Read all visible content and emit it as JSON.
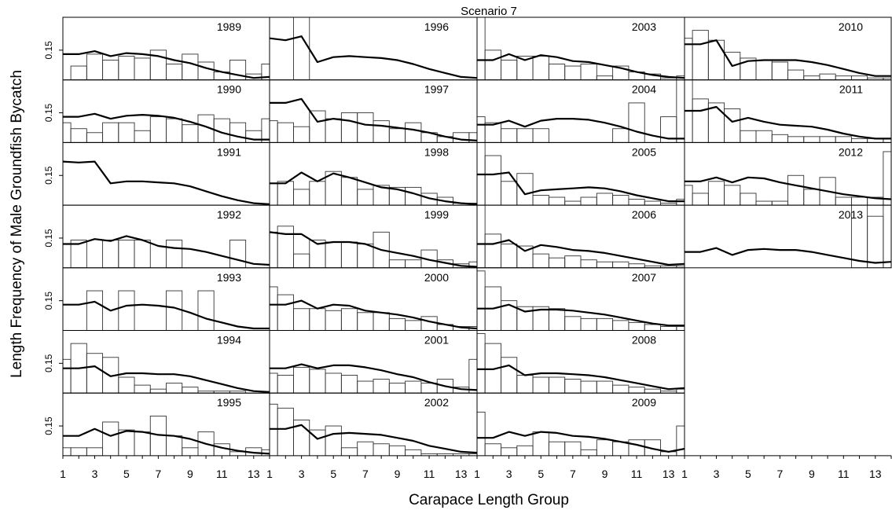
{
  "figure": {
    "title": "Scenario 7",
    "xlabel": "Carapace Length Group",
    "ylabel": "Length Frequency of Male Groundfish Bycatch",
    "x_ticks": [
      "1",
      "3",
      "5",
      "7",
      "9",
      "11",
      "13"
    ],
    "y_tick_label": "0.15"
  },
  "chart_data": {
    "type": "bar+line small multiples",
    "x": [
      1,
      2,
      3,
      4,
      5,
      6,
      7,
      8,
      9,
      10,
      11,
      12,
      13,
      14
    ],
    "xlim": [
      1,
      14
    ],
    "ylim": [
      0,
      0.3
    ],
    "bars": "observed length frequency",
    "line": "predicted length frequency",
    "panels": [
      {
        "year": "1989",
        "observed": [
          0,
          0.07,
          0.13,
          0.1,
          0.12,
          0.11,
          0.15,
          0.08,
          0.13,
          0.09,
          0.04,
          0.1,
          0.03,
          0.08
        ],
        "predicted": [
          0.13,
          0.13,
          0.145,
          0.12,
          0.135,
          0.13,
          0.12,
          0.1,
          0.085,
          0.06,
          0.04,
          0.025,
          0.01,
          0.015
        ]
      },
      {
        "year": "1990",
        "observed": [
          0.1,
          0.07,
          0.05,
          0.1,
          0.1,
          0.06,
          0.13,
          0.12,
          0.09,
          0.14,
          0.12,
          0.1,
          0.06,
          0.12
        ],
        "predicted": [
          0.13,
          0.13,
          0.145,
          0.12,
          0.135,
          0.14,
          0.135,
          0.125,
          0.105,
          0.08,
          0.05,
          0.03,
          0.015,
          0.015
        ]
      },
      {
        "year": "1991",
        "observed": [
          0,
          0,
          0,
          0,
          0,
          0,
          0,
          0,
          0,
          0,
          0,
          0,
          0,
          0
        ],
        "predicted": [
          0.22,
          0.215,
          0.22,
          0.11,
          0.12,
          0.12,
          0.115,
          0.11,
          0.095,
          0.07,
          0.045,
          0.025,
          0.01,
          0.005
        ]
      },
      {
        "year": "1992",
        "observed": [
          0,
          0.14,
          0,
          0.14,
          0.14,
          0.14,
          0,
          0.14,
          0,
          0,
          0,
          0.14,
          0,
          0
        ],
        "predicted": [
          0.12,
          0.12,
          0.145,
          0.135,
          0.16,
          0.14,
          0.11,
          0.1,
          0.095,
          0.08,
          0.06,
          0.04,
          0.02,
          0.015
        ]
      },
      {
        "year": "1993",
        "observed": [
          0,
          0,
          0.2,
          0,
          0.2,
          0,
          0,
          0.2,
          0,
          0.2,
          0,
          0,
          0,
          0
        ],
        "predicted": [
          0.13,
          0.13,
          0.145,
          0.1,
          0.125,
          0.13,
          0.125,
          0.115,
          0.09,
          0.06,
          0.04,
          0.02,
          0.01,
          0.01
        ]
      },
      {
        "year": "1994",
        "observed": [
          0.17,
          0.25,
          0.2,
          0.18,
          0.08,
          0.04,
          0.02,
          0.05,
          0.03,
          0.01,
          0.01,
          0.01,
          0,
          0
        ],
        "predicted": [
          0.125,
          0.125,
          0.135,
          0.085,
          0.1,
          0.1,
          0.095,
          0.095,
          0.085,
          0.065,
          0.045,
          0.025,
          0.01,
          0.005
        ]
      },
      {
        "year": "1995",
        "observed": [
          0.04,
          0.04,
          0.04,
          0.17,
          0.13,
          0.12,
          0.2,
          0.1,
          0.04,
          0.12,
          0.06,
          0.02,
          0.04,
          0.03
        ],
        "predicted": [
          0.1,
          0.1,
          0.135,
          0.1,
          0.125,
          0.12,
          0.105,
          0.1,
          0.085,
          0.06,
          0.04,
          0.025,
          0.015,
          0.01
        ]
      },
      {
        "year": "1996",
        "observed": [
          0,
          0,
          0.55,
          0,
          0,
          0,
          0,
          0,
          0,
          0,
          0,
          0,
          0,
          0
        ],
        "predicted": [
          0.21,
          0.2,
          0.22,
          0.09,
          0.115,
          0.12,
          0.115,
          0.11,
          0.1,
          0.08,
          0.055,
          0.035,
          0.015,
          0.01
        ]
      },
      {
        "year": "1997",
        "observed": [
          0.11,
          0.1,
          0.08,
          0.16,
          0.12,
          0.15,
          0.15,
          0.11,
          0.07,
          0.1,
          0.05,
          0.03,
          0.05,
          0.05
        ],
        "predicted": [
          0.2,
          0.2,
          0.22,
          0.105,
          0.12,
          0.11,
          0.09,
          0.085,
          0.075,
          0.065,
          0.05,
          0.03,
          0.015,
          0.01
        ]
      },
      {
        "year": "1998",
        "observed": [
          0.11,
          0.12,
          0.08,
          0.12,
          0.17,
          0.14,
          0.08,
          0.1,
          0.09,
          0.09,
          0.06,
          0.04,
          0.01,
          0.01
        ],
        "predicted": [
          0.11,
          0.11,
          0.165,
          0.12,
          0.16,
          0.14,
          0.115,
          0.09,
          0.08,
          0.06,
          0.035,
          0.02,
          0.01,
          0.005
        ]
      },
      {
        "year": "1999",
        "observed": [
          0.18,
          0.21,
          0.07,
          0.14,
          0.13,
          0.13,
          0.12,
          0.18,
          0.04,
          0.04,
          0.09,
          0.04,
          0.02,
          0.03
        ],
        "predicted": [
          0.18,
          0.17,
          0.17,
          0.12,
          0.13,
          0.13,
          0.12,
          0.09,
          0.075,
          0.06,
          0.04,
          0.025,
          0.01,
          0.005
        ]
      },
      {
        "year": "2000",
        "observed": [
          0.22,
          0.18,
          0.11,
          0.11,
          0.1,
          0.11,
          0.09,
          0.09,
          0.06,
          0.05,
          0.07,
          0.03,
          0.02,
          0.02
        ],
        "predicted": [
          0.13,
          0.13,
          0.15,
          0.11,
          0.13,
          0.125,
          0.1,
          0.09,
          0.08,
          0.065,
          0.045,
          0.03,
          0.015,
          0.01
        ]
      },
      {
        "year": "2001",
        "observed": [
          0.1,
          0.09,
          0.13,
          0.12,
          0.1,
          0.09,
          0.06,
          0.07,
          0.05,
          0.06,
          0.05,
          0.07,
          0.03,
          0.17
        ],
        "predicted": [
          0.125,
          0.125,
          0.145,
          0.125,
          0.14,
          0.14,
          0.13,
          0.115,
          0.095,
          0.08,
          0.055,
          0.035,
          0.02,
          0.015
        ]
      },
      {
        "year": "2002",
        "observed": [
          0.26,
          0.24,
          0.18,
          0.13,
          0.15,
          0.04,
          0.07,
          0.06,
          0.05,
          0.03,
          0.01,
          0.01,
          0.01,
          0.01
        ],
        "predicted": [
          0.135,
          0.135,
          0.155,
          0.085,
          0.11,
          0.115,
          0.11,
          0.105,
          0.09,
          0.075,
          0.05,
          0.035,
          0.02,
          0.015
        ]
      },
      {
        "year": "2003",
        "observed": [
          0.35,
          0.15,
          0.1,
          0.12,
          0.12,
          0.08,
          0.07,
          0.08,
          0.02,
          0.07,
          0.04,
          0.03,
          0.01,
          0.02
        ],
        "predicted": [
          0.1,
          0.1,
          0.13,
          0.1,
          0.125,
          0.115,
          0.095,
          0.09,
          0.075,
          0.06,
          0.04,
          0.025,
          0.015,
          0.01
        ]
      },
      {
        "year": "2004",
        "observed": [
          0.13,
          0.1,
          0.07,
          0.07,
          0.07,
          0,
          0,
          0,
          0,
          0.07,
          0.2,
          0,
          0.13,
          0.38
        ],
        "predicted": [
          0.09,
          0.09,
          0.11,
          0.08,
          0.11,
          0.12,
          0.12,
          0.115,
          0.1,
          0.08,
          0.055,
          0.035,
          0.02,
          0.02
        ]
      },
      {
        "year": "2005",
        "observed": [
          0.35,
          0.25,
          0.12,
          0.16,
          0.05,
          0.04,
          0.02,
          0.04,
          0.06,
          0.05,
          0.03,
          0.02,
          0.01,
          0.03
        ],
        "predicted": [
          0.155,
          0.155,
          0.165,
          0.055,
          0.075,
          0.08,
          0.085,
          0.09,
          0.085,
          0.07,
          0.05,
          0.035,
          0.02,
          0.02
        ]
      },
      {
        "year": "2006",
        "observed": [
          0.33,
          0.17,
          0.12,
          0.11,
          0.07,
          0.05,
          0.06,
          0.04,
          0.03,
          0.03,
          0.02,
          0.01,
          0.01,
          0.01
        ],
        "predicted": [
          0.12,
          0.12,
          0.14,
          0.085,
          0.115,
          0.105,
          0.09,
          0.085,
          0.075,
          0.06,
          0.045,
          0.03,
          0.015,
          0.02
        ]
      },
      {
        "year": "2007",
        "observed": [
          0.3,
          0.22,
          0.15,
          0.12,
          0.12,
          0.11,
          0.07,
          0.06,
          0.06,
          0.05,
          0.04,
          0.03,
          0.02,
          0.02
        ],
        "predicted": [
          0.11,
          0.11,
          0.13,
          0.095,
          0.105,
          0.105,
          0.1,
          0.09,
          0.08,
          0.065,
          0.05,
          0.035,
          0.025,
          0.025
        ]
      },
      {
        "year": "2008",
        "observed": [
          0.3,
          0.25,
          0.18,
          0.09,
          0.08,
          0.08,
          0.07,
          0.06,
          0.06,
          0.04,
          0.03,
          0.02,
          0.01,
          0.02
        ],
        "predicted": [
          0.12,
          0.12,
          0.14,
          0.09,
          0.1,
          0.1,
          0.095,
          0.09,
          0.08,
          0.065,
          0.05,
          0.035,
          0.02,
          0.025
        ]
      },
      {
        "year": "2009",
        "observed": [
          0.22,
          0.06,
          0.04,
          0.05,
          0.12,
          0.07,
          0.07,
          0.03,
          0.08,
          0.07,
          0.08,
          0.08,
          0.02,
          0.15
        ],
        "predicted": [
          0.09,
          0.09,
          0.12,
          0.1,
          0.12,
          0.115,
          0.1,
          0.095,
          0.085,
          0.07,
          0.055,
          0.035,
          0.02,
          0.035
        ]
      },
      {
        "year": "2010",
        "observed": [
          0.21,
          0.25,
          0.2,
          0.14,
          0.11,
          0.1,
          0.09,
          0.05,
          0.02,
          0.03,
          0.02,
          0.02,
          0.01,
          0.01
        ],
        "predicted": [
          0.18,
          0.18,
          0.2,
          0.07,
          0.095,
          0.1,
          0.1,
          0.1,
          0.09,
          0.075,
          0.055,
          0.035,
          0.02,
          0.02
        ]
      },
      {
        "year": "2011",
        "observed": [
          0.37,
          0.22,
          0.2,
          0.17,
          0.06,
          0.06,
          0.04,
          0.03,
          0.03,
          0.03,
          0.03,
          0.02,
          0.02,
          0.02
        ],
        "predicted": [
          0.16,
          0.16,
          0.18,
          0.105,
          0.125,
          0.105,
          0.09,
          0.085,
          0.08,
          0.065,
          0.045,
          0.03,
          0.02,
          0.02
        ]
      },
      {
        "year": "2012",
        "observed": [
          0.1,
          0.06,
          0.12,
          0.1,
          0.06,
          0.02,
          0.02,
          0.15,
          0.08,
          0.14,
          0.04,
          0.04,
          0.04,
          0.27
        ],
        "predicted": [
          0.12,
          0.12,
          0.14,
          0.115,
          0.14,
          0.135,
          0.115,
          0.1,
          0.085,
          0.07,
          0.055,
          0.045,
          0.035,
          0.03
        ]
      },
      {
        "year": "2013",
        "observed": [
          0,
          0,
          0,
          0,
          0,
          0,
          0,
          0,
          0,
          0,
          0,
          0.4,
          0.26,
          0.4
        ],
        "predicted": [
          0.08,
          0.08,
          0.1,
          0.065,
          0.09,
          0.095,
          0.09,
          0.09,
          0.08,
          0.065,
          0.05,
          0.035,
          0.025,
          0.03
        ]
      }
    ]
  }
}
